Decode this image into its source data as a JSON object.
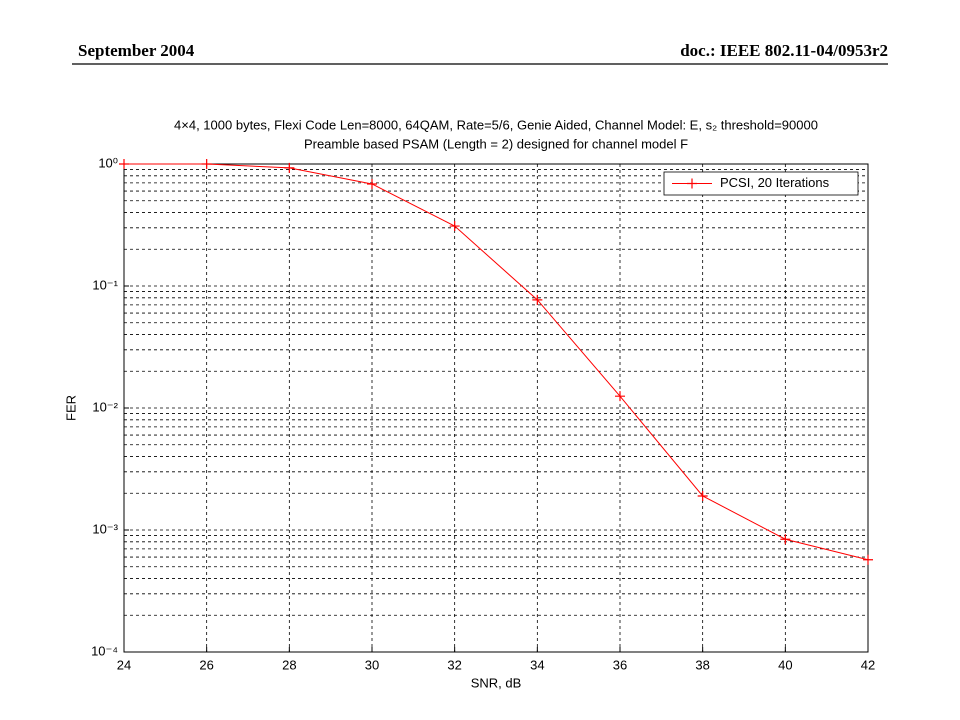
{
  "header": {
    "left": "September 2004",
    "right": "doc.: IEEE 802.11-04/0953r2"
  },
  "chart_data": {
    "type": "line",
    "title": "4×4, 1000 bytes, Flexi Code Len=8000, 64QAM, Rate=5/6, Genie Aided, Channel Model: E, s₂ threshold=90000",
    "subtitle": "Preamble based PSAM (Length = 2) designed for channel model F",
    "x_label": "SNR, dB",
    "y_label": "FER",
    "x": [
      24,
      26,
      28,
      30,
      32,
      34,
      36,
      38,
      40,
      42
    ],
    "series": [
      {
        "name": "PCSI, 20 Iterations",
        "color": "#ff0000",
        "values": [
          1,
          1,
          0.93,
          0.686,
          0.31,
          0.077,
          0.0125,
          0.0019,
          0.00084,
          0.00057
        ]
      }
    ],
    "xlim": [
      24,
      42
    ],
    "xticks": [
      24,
      26,
      28,
      30,
      32,
      34,
      36,
      38,
      40,
      42
    ],
    "ylim": [
      0.0001,
      1
    ],
    "log_y": true,
    "yticks": [
      {
        "value": 1,
        "label": "10⁰"
      },
      {
        "value": 0.1,
        "label": "10⁻¹"
      },
      {
        "value": 0.01,
        "label": "10⁻²"
      },
      {
        "value": 0.001,
        "label": "10⁻³"
      },
      {
        "value": 0.0001,
        "label": "10⁻⁴"
      }
    ],
    "grid": true,
    "legend": "upper right"
  }
}
